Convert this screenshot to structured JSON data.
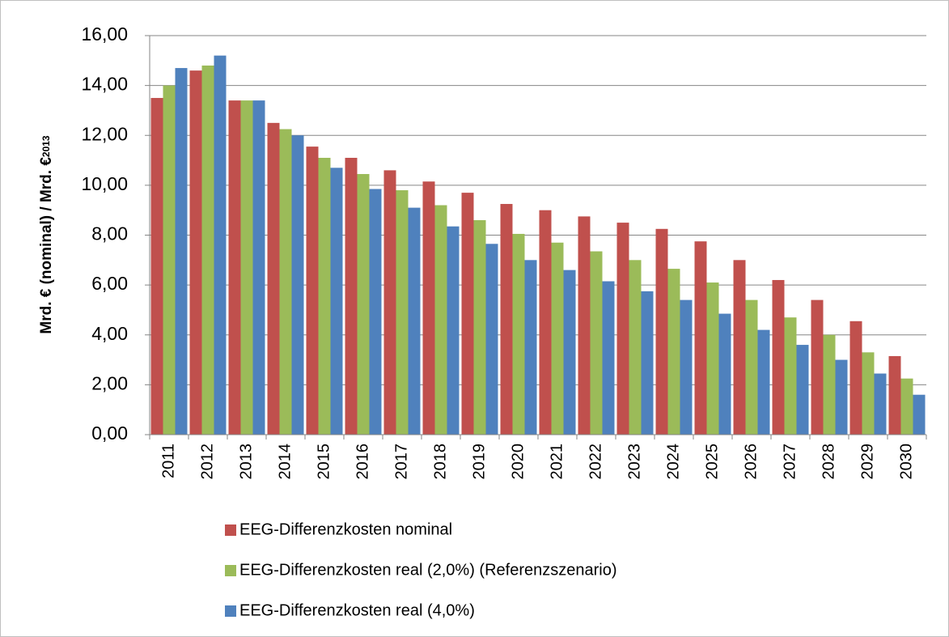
{
  "chart_data": {
    "type": "bar",
    "ylabel": "Mrd. € (nominal) / Mrd. €",
    "ylabel_sub": "2013",
    "categories": [
      "2011",
      "2012",
      "2013",
      "2014",
      "2015",
      "2016",
      "2017",
      "2018",
      "2019",
      "2020",
      "2021",
      "2022",
      "2023",
      "2024",
      "2025",
      "2026",
      "2027",
      "2028",
      "2029",
      "2030"
    ],
    "series": [
      {
        "name": "EEG-Differenzkosten nominal",
        "color": "#c0504d",
        "values": [
          13.5,
          14.6,
          13.4,
          12.5,
          11.55,
          11.1,
          10.6,
          10.15,
          9.7,
          9.25,
          9.0,
          8.75,
          8.5,
          8.25,
          7.75,
          7.0,
          6.2,
          5.4,
          4.55,
          3.15
        ]
      },
      {
        "name": "EEG-Differenzkosten real (2,0%) (Referenzszenario)",
        "color": "#9bbb59",
        "values": [
          14.0,
          14.8,
          13.4,
          12.25,
          11.1,
          10.45,
          9.8,
          9.2,
          8.6,
          8.05,
          7.7,
          7.35,
          7.0,
          6.65,
          6.1,
          5.4,
          4.7,
          4.0,
          3.3,
          2.25
        ]
      },
      {
        "name": "EEG-Differenzkosten real (4,0%)",
        "color": "#4f81bd",
        "values": [
          14.7,
          15.2,
          13.4,
          12.0,
          10.7,
          9.85,
          9.1,
          8.35,
          7.65,
          7.0,
          6.6,
          6.15,
          5.75,
          5.4,
          4.85,
          4.2,
          3.6,
          3.0,
          2.45,
          1.6
        ]
      }
    ],
    "ylim": [
      0,
      16
    ],
    "yticks": [
      {
        "value": 0,
        "label": "0,00"
      },
      {
        "value": 2,
        "label": "2,00"
      },
      {
        "value": 4,
        "label": "4,00"
      },
      {
        "value": 6,
        "label": "6,00"
      },
      {
        "value": 8,
        "label": "8,00"
      },
      {
        "value": 10,
        "label": "10,00"
      },
      {
        "value": 12,
        "label": "12,00"
      },
      {
        "value": 14,
        "label": "14,00"
      },
      {
        "value": 16,
        "label": "16,00"
      }
    ],
    "grid": true,
    "legend": "bottom"
  }
}
